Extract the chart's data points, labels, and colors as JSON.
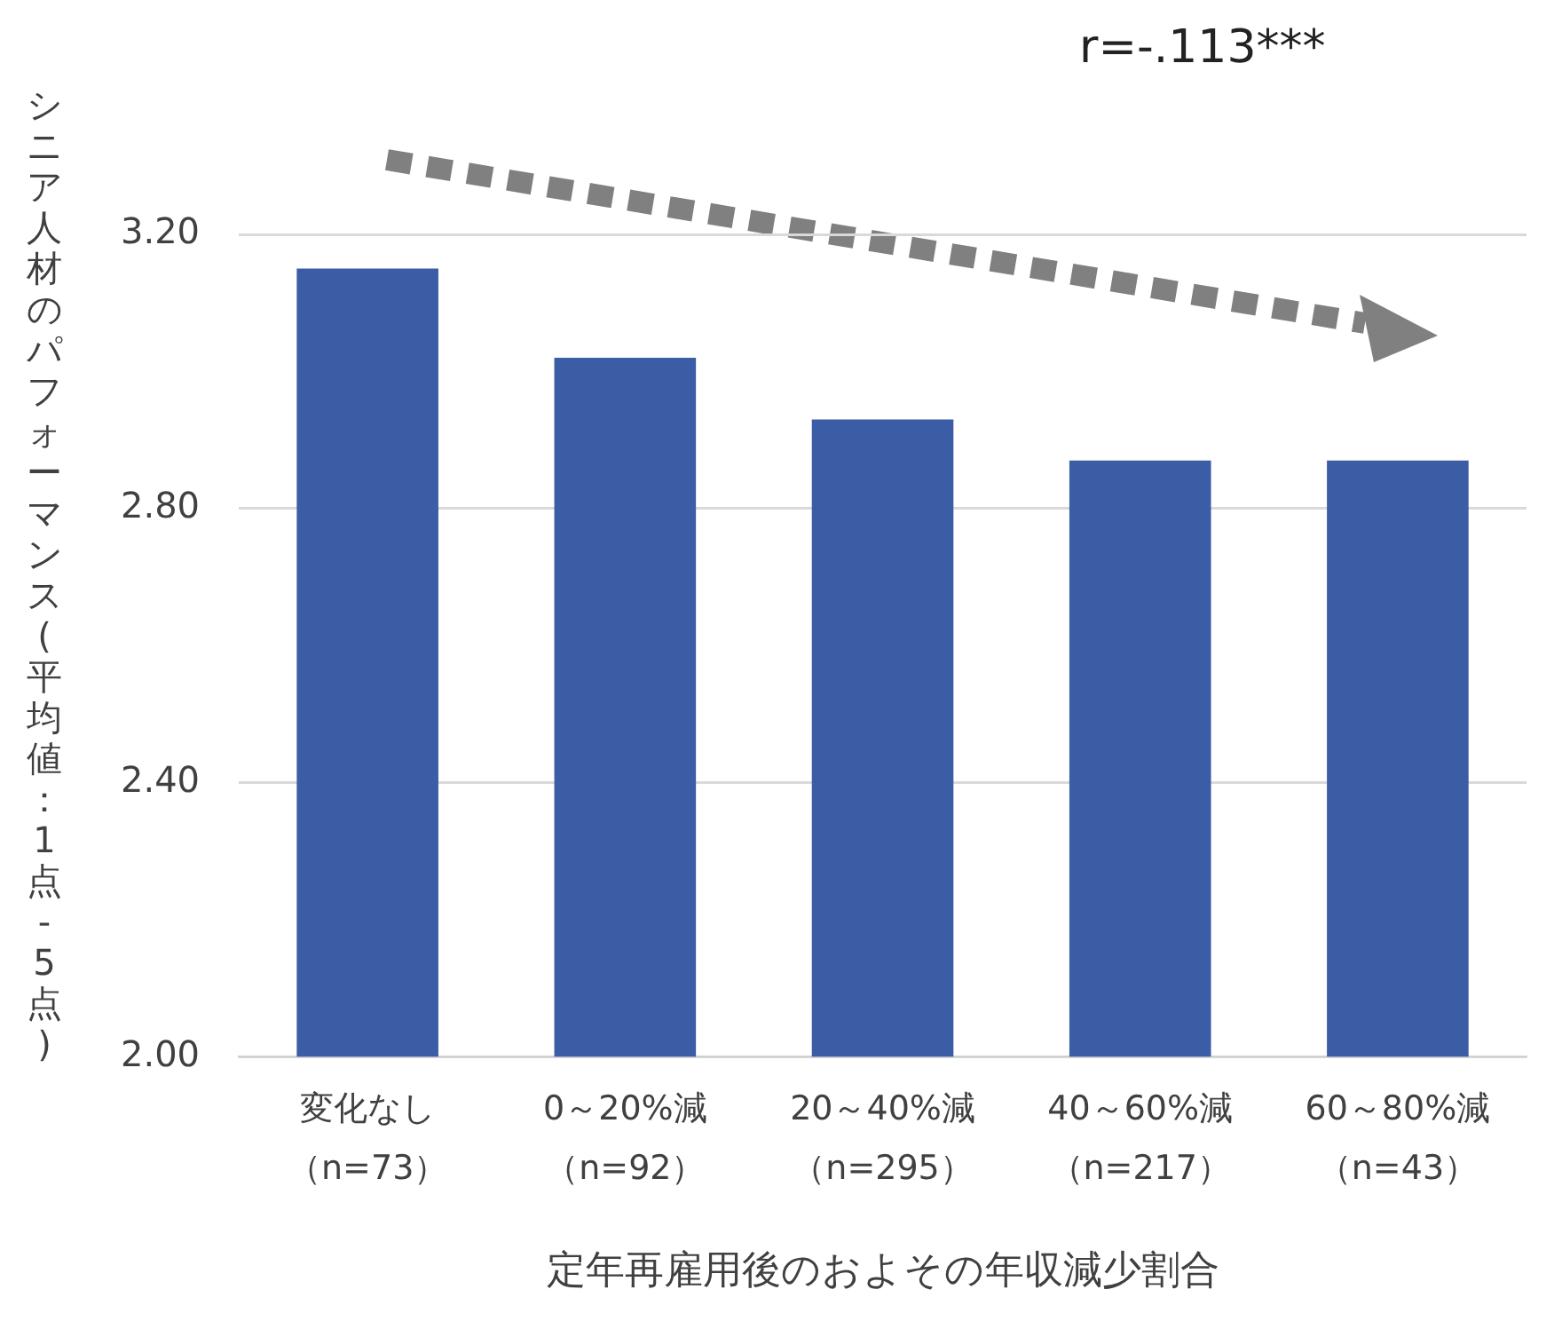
{
  "chart_data": {
    "type": "bar",
    "categories": [
      "変化なし（n=73）",
      "0～20%減（n=92）",
      "20～40%減（n=295）",
      "40～60%減（n=217）",
      "60～80%減（n=43）"
    ],
    "values": [
      3.15,
      3.02,
      2.93,
      2.87,
      2.87
    ],
    "color": "#3a5da6",
    "ylim": [
      2.0,
      3.2
    ],
    "yticks": [
      {
        "value": 2.0,
        "label": "2.00"
      },
      {
        "value": 2.4,
        "label": "2.40"
      },
      {
        "value": 2.8,
        "label": "2.80"
      },
      {
        "value": 3.2,
        "label": "3.20"
      }
    ],
    "grid": "y",
    "legend": false,
    "xlabel": "定年再雇用後のおよその年収減少割合",
    "ylabel": "シニア人材のパフォーマンス(平均値：1点-5点)",
    "annotations": [
      "r=-.113***"
    ]
  }
}
